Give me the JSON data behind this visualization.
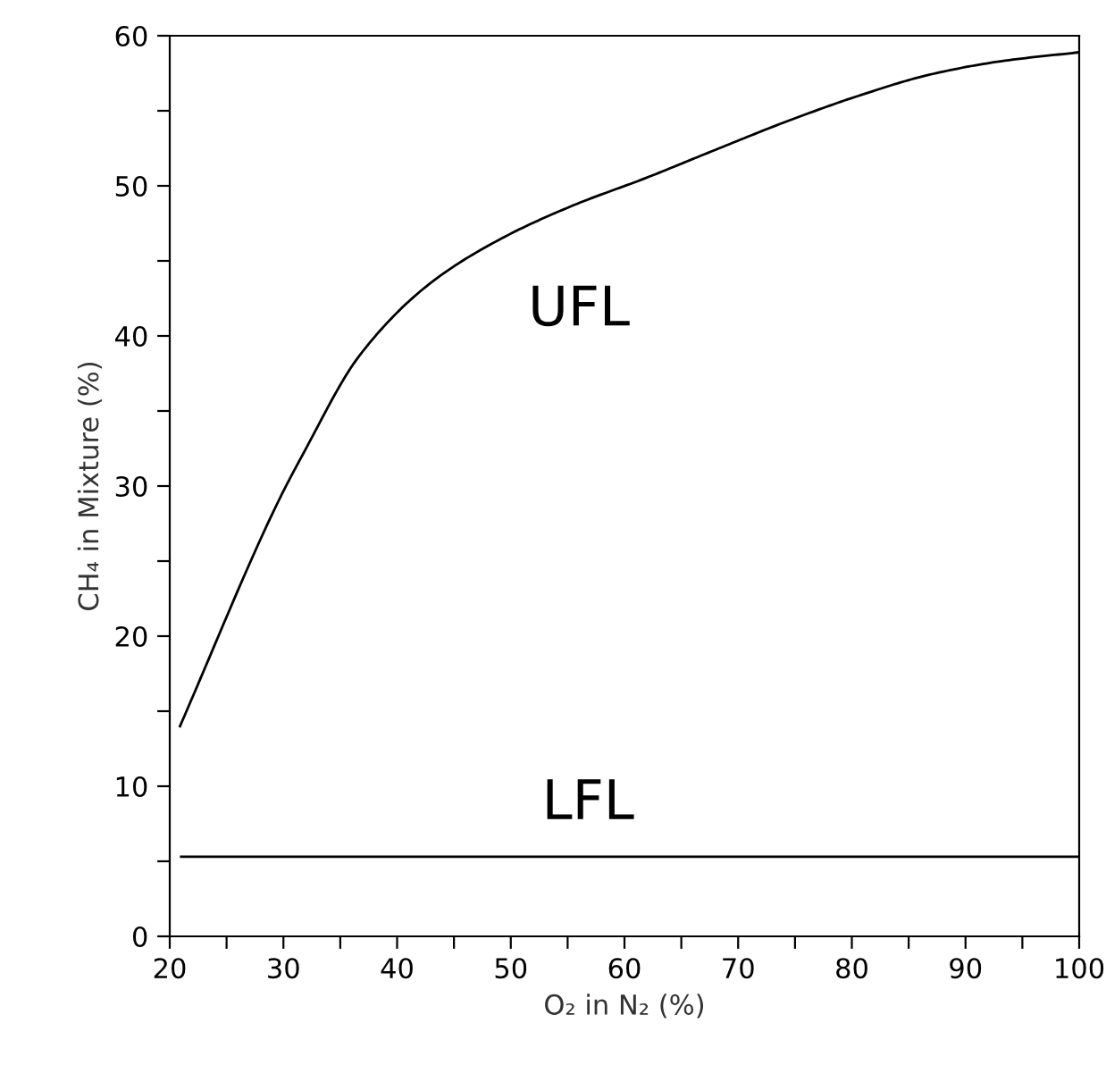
{
  "chart_data": {
    "type": "line",
    "xlabel": "O₂ in N₂ (%)",
    "ylabel": "CH₄ in Mixture (%)",
    "xlim": [
      20,
      100
    ],
    "ylim": [
      0,
      60
    ],
    "xticks": [
      20,
      {
        "value": 25,
        "label": null
      },
      30,
      {
        "value": 35,
        "label": null
      },
      40,
      {
        "value": 45,
        "label": null
      },
      50,
      {
        "value": 55,
        "label": null
      },
      60,
      {
        "value": 65,
        "label": null
      },
      70,
      {
        "value": 75,
        "label": null
      },
      80,
      {
        "value": 85,
        "label": null
      },
      90,
      {
        "value": 95,
        "label": null
      },
      100
    ],
    "yticks": [
      0,
      {
        "value": 5,
        "label": null
      },
      10,
      {
        "value": 15,
        "label": null
      },
      20,
      {
        "value": 25,
        "label": null
      },
      30,
      {
        "value": 35,
        "label": null
      },
      40,
      {
        "value": 45,
        "label": null
      },
      50,
      {
        "value": 55,
        "label": null
      },
      60
    ],
    "grid": false,
    "legend": false,
    "marker": "none",
    "line_style": "solid",
    "series": [
      {
        "color": "#000000",
        "x": [
          20.9,
          29.5,
          31.7,
          36.7,
          42.9,
          49.2,
          55.5,
          61.8,
          68.0,
          74.3,
          80.6,
          86.8,
          93.1,
          100
        ],
        "values": [
          14.0,
          28.9,
          32.1,
          38.7,
          43.5,
          46.5,
          48.7,
          50.5,
          52.4,
          54.3,
          56.0,
          57.4,
          58.3,
          58.9
        ]
      },
      {
        "color": "#000000",
        "x": [
          21,
          100
        ],
        "values": [
          5.3,
          5.3
        ]
      }
    ],
    "annotations": [
      "UFL",
      "LFL"
    ]
  }
}
